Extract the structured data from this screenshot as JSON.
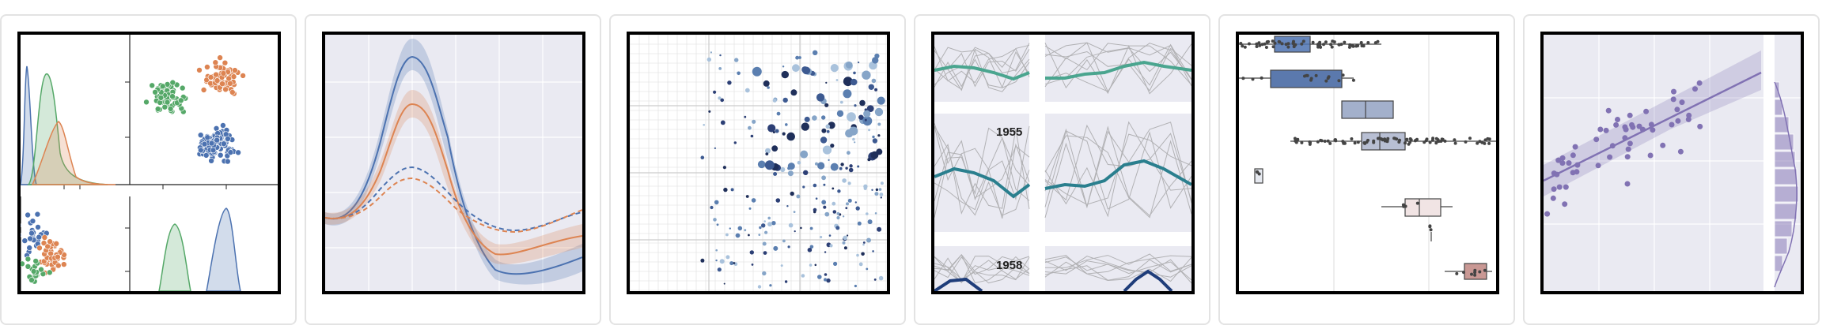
{
  "gallery": {
    "thumbnails": [
      {
        "name": "pairgrid-kde-scatter",
        "description_label": ""
      },
      {
        "name": "lineplot-errorbands",
        "description_label": ""
      },
      {
        "name": "bubble-scatter",
        "description_label": ""
      },
      {
        "name": "small-multiples-timeseries",
        "description_label": ""
      },
      {
        "name": "boxplot-with-points",
        "description_label": ""
      },
      {
        "name": "regression-marginal",
        "description_label": ""
      }
    ],
    "years": {
      "first": "1955",
      "second": "1958"
    }
  },
  "colors": {
    "blue": "#4c72b0",
    "orange": "#dd8452",
    "green": "#55a868",
    "purple": "#8172b3",
    "panel_bg": "#eaeaf2",
    "teal_light": "#4aa58f",
    "teal": "#2a7f8e",
    "navy": "#1f3d7a"
  }
}
